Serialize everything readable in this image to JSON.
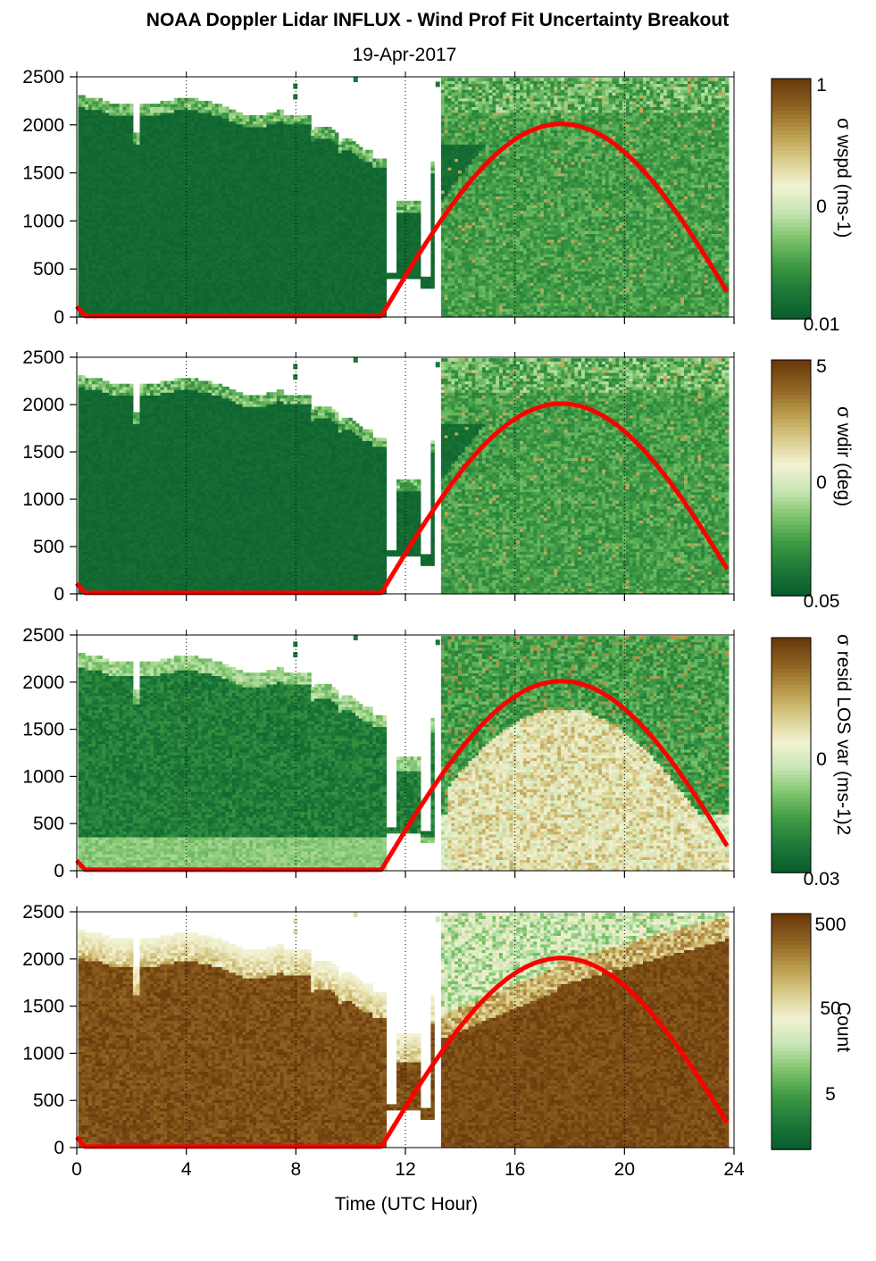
{
  "title": "NOAA Doppler Lidar INFLUX - Wind Prof Fit Uncertainty Breakout",
  "subtitle": "19-Apr-2017",
  "xlabel": "Time (UTC Hour)",
  "colors": {
    "ramp": [
      "#0b5e2e",
      "#1d7a38",
      "#3f9a44",
      "#7ec46c",
      "#c8e6b4",
      "#f2f2d4",
      "#d9cc8a",
      "#b99a4a",
      "#8f6222",
      "#6a3a0b"
    ],
    "curve": "#ff0000"
  },
  "chart_data": [
    {
      "type": "heatmap",
      "name": "sigma-wspd",
      "x_range": [
        0,
        24
      ],
      "y_range": [
        0,
        2500
      ],
      "x_ticks": [
        "0",
        "4",
        "8",
        "12",
        "16",
        "20",
        "24"
      ],
      "y_ticks": [
        "0",
        "500",
        "1000",
        "1500",
        "2000",
        "2500"
      ],
      "colorbar_label": "σ wspd (ms-1)",
      "colorbar_ticks": [
        "1",
        "0",
        "0.01"
      ],
      "colorbar_scale": "log",
      "curve_points": [
        [
          0.0,
          110
        ],
        [
          0.3,
          10
        ],
        [
          11.1,
          10
        ],
        [
          12.3,
          380
        ],
        [
          14.0,
          1150
        ],
        [
          16.0,
          1800
        ],
        [
          17.7,
          2010
        ],
        [
          19.5,
          1750
        ],
        [
          21.5,
          1100
        ],
        [
          23.8,
          300
        ]
      ]
    },
    {
      "type": "heatmap",
      "name": "sigma-wdir",
      "x_range": [
        0,
        24
      ],
      "y_range": [
        0,
        2500
      ],
      "x_ticks": [
        "0",
        "4",
        "8",
        "12",
        "16",
        "20",
        "24"
      ],
      "y_ticks": [
        "0",
        "500",
        "1000",
        "1500",
        "2000",
        "2500"
      ],
      "colorbar_label": "σ wdir (deg)",
      "colorbar_ticks": [
        "5",
        "0",
        "0.05"
      ],
      "colorbar_scale": "log",
      "curve_points": [
        [
          0.0,
          110
        ],
        [
          0.3,
          10
        ],
        [
          11.1,
          10
        ],
        [
          12.3,
          380
        ],
        [
          14.0,
          1150
        ],
        [
          16.0,
          1800
        ],
        [
          17.7,
          2010
        ],
        [
          19.5,
          1750
        ],
        [
          21.5,
          1100
        ],
        [
          23.8,
          300
        ]
      ]
    },
    {
      "type": "heatmap",
      "name": "sigma-resid-los-var",
      "x_range": [
        0,
        24
      ],
      "y_range": [
        0,
        2500
      ],
      "x_ticks": [
        "0",
        "4",
        "8",
        "12",
        "16",
        "20",
        "24"
      ],
      "y_ticks": [
        "0",
        "500",
        "1000",
        "1500",
        "2000",
        "2500"
      ],
      "colorbar_label": "σ resid LOS var (ms-1)2",
      "colorbar_ticks": [
        "0",
        "0.03"
      ],
      "colorbar_scale": "log",
      "curve_points": [
        [
          0.0,
          110
        ],
        [
          0.3,
          10
        ],
        [
          11.1,
          10
        ],
        [
          12.3,
          380
        ],
        [
          14.0,
          1150
        ],
        [
          16.0,
          1800
        ],
        [
          17.7,
          2010
        ],
        [
          19.5,
          1750
        ],
        [
          21.5,
          1100
        ],
        [
          23.8,
          300
        ]
      ]
    },
    {
      "type": "heatmap",
      "name": "count",
      "x_range": [
        0,
        24
      ],
      "y_range": [
        0,
        2500
      ],
      "x_ticks": [
        "0",
        "4",
        "8",
        "12",
        "16",
        "20",
        "24"
      ],
      "y_ticks": [
        "0",
        "500",
        "1000",
        "1500",
        "2000",
        "2500"
      ],
      "colorbar_label": "Count",
      "colorbar_ticks": [
        "500",
        "50",
        "5"
      ],
      "colorbar_scale": "log",
      "curve_points": [
        [
          0.0,
          110
        ],
        [
          0.3,
          10
        ],
        [
          11.1,
          10
        ],
        [
          12.3,
          380
        ],
        [
          14.0,
          1150
        ],
        [
          16.0,
          1800
        ],
        [
          17.7,
          2010
        ],
        [
          19.5,
          1750
        ],
        [
          21.5,
          1100
        ],
        [
          23.8,
          300
        ]
      ]
    }
  ]
}
